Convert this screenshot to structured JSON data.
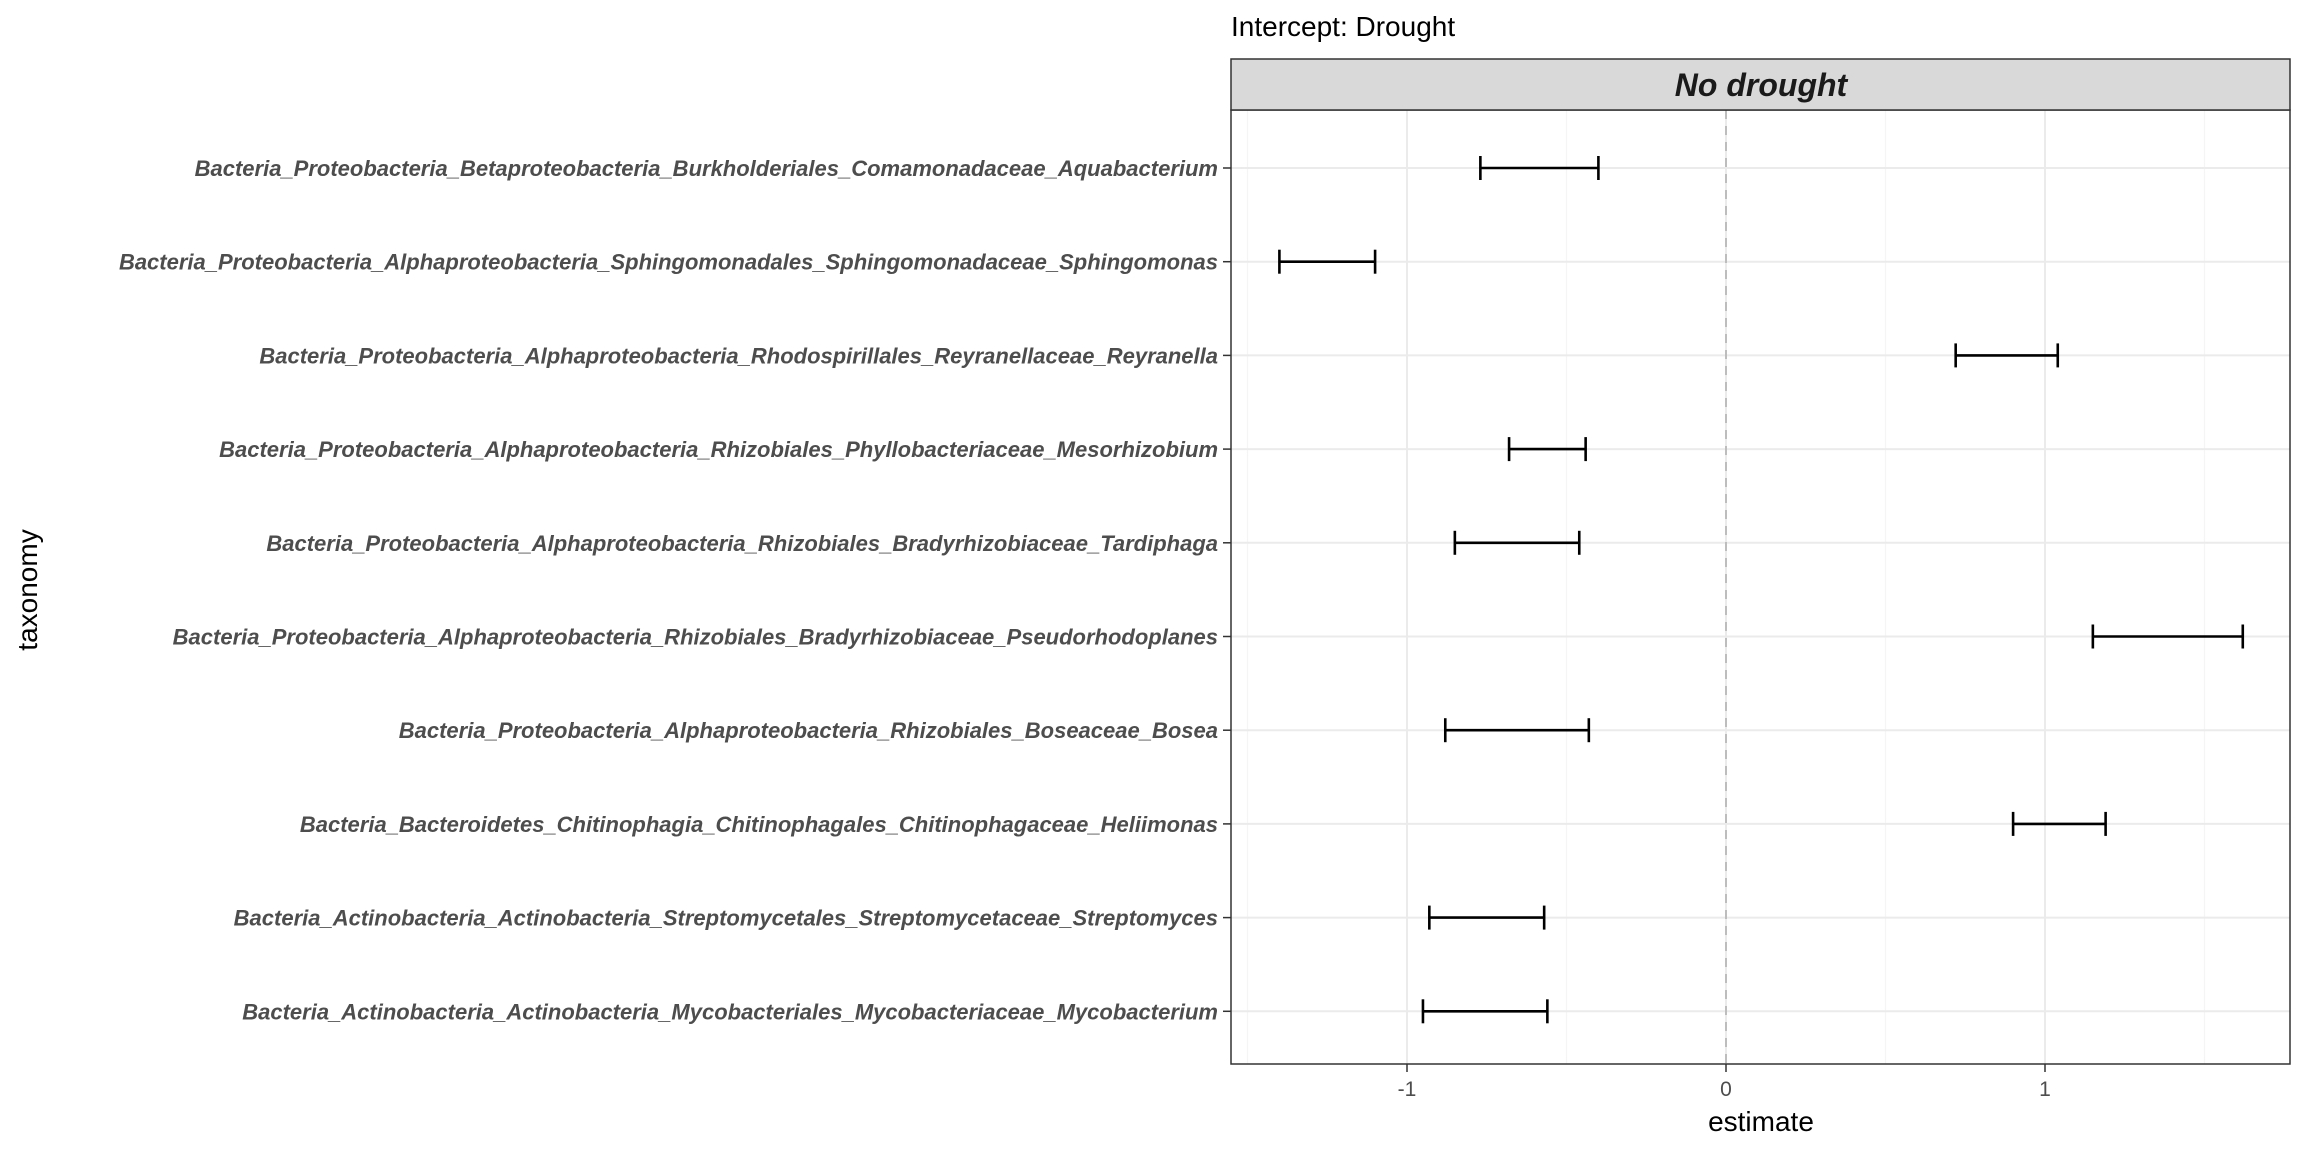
{
  "chart_data": {
    "type": "errorbar",
    "title": "Intercept: Drought",
    "facet_label": "No drought",
    "xlabel": "estimate",
    "ylabel": "taxonomy",
    "xlim": [
      -1.55,
      1.72
    ],
    "x_ticks": [
      -1,
      0,
      1
    ],
    "x_tick_labels": [
      "-1",
      "0",
      "1"
    ],
    "reference_line": 0,
    "grid": true,
    "categories": [
      "Bacteria_Proteobacteria_Betaproteobacteria_Burkholderiales_Comamonadaceae_Aquabacterium",
      "Bacteria_Proteobacteria_Alphaproteobacteria_Sphingomonadales_Sphingomonadaceae_Sphingomonas",
      "Bacteria_Proteobacteria_Alphaproteobacteria_Rhodospirillales_Reyranellaceae_Reyranella",
      "Bacteria_Proteobacteria_Alphaproteobacteria_Rhizobiales_Phyllobacteriaceae_Mesorhizobium",
      "Bacteria_Proteobacteria_Alphaproteobacteria_Rhizobiales_Bradyrhizobiaceae_Tardiphaga",
      "Bacteria_Proteobacteria_Alphaproteobacteria_Rhizobiales_Bradyrhizobiaceae_Pseudorhodoplanes",
      "Bacteria_Proteobacteria_Alphaproteobacteria_Rhizobiales_Boseaceae_Bosea",
      "Bacteria_Bacteroidetes_Chitinophagia_Chitinophagales_Chitinophagaceae_Heliimonas",
      "Bacteria_Actinobacteria_Actinobacteria_Streptomycetales_Streptomycetaceae_Streptomyces",
      "Bacteria_Actinobacteria_Actinobacteria_Mycobacteriales_Mycobacteriaceae_Mycobacterium"
    ],
    "lower": [
      -0.77,
      -1.4,
      0.72,
      -0.68,
      -0.85,
      1.15,
      -0.88,
      0.9,
      -0.93,
      -0.95
    ],
    "upper": [
      -0.4,
      -1.1,
      1.04,
      -0.44,
      -0.46,
      1.62,
      -0.43,
      1.19,
      -0.57,
      -0.56
    ],
    "colors": {
      "panel_border": "#333333",
      "strip_fill": "#d9d9d9",
      "grid_major": "#ebebeb",
      "grid_minor": "#f5f5f5",
      "reference_line": "#bdbdbd",
      "errorbar": "#000000"
    }
  }
}
